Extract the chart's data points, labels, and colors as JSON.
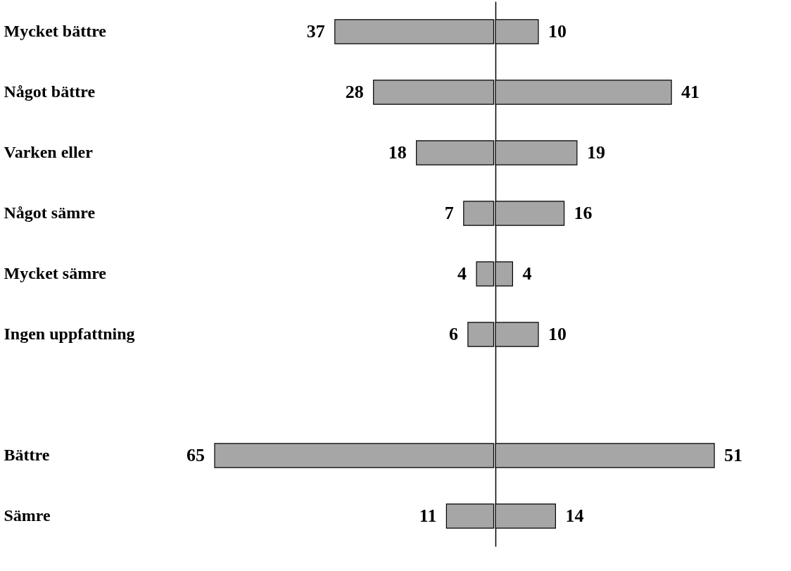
{
  "chart_data": [
    {
      "type": "bar",
      "orientation": "horizontal",
      "categories": [
        "Mycket bättre",
        "Något bättre",
        "Varken eller",
        "Något sämre",
        "Mycket sämre",
        "Ingen uppfattning",
        null,
        "Bättre",
        "Sämre"
      ],
      "values": [
        37,
        28,
        18,
        7,
        4,
        6,
        null,
        65,
        11
      ],
      "color": "#a6a6a6",
      "data_labels": true,
      "tick_labels": "y"
    },
    {
      "type": "bar",
      "orientation": "horizontal",
      "values": [
        10,
        41,
        19,
        16,
        4,
        10,
        null,
        51,
        14
      ],
      "color": "#a6a6a6",
      "data_labels": true,
      "tick_labels": false
    }
  ]
}
